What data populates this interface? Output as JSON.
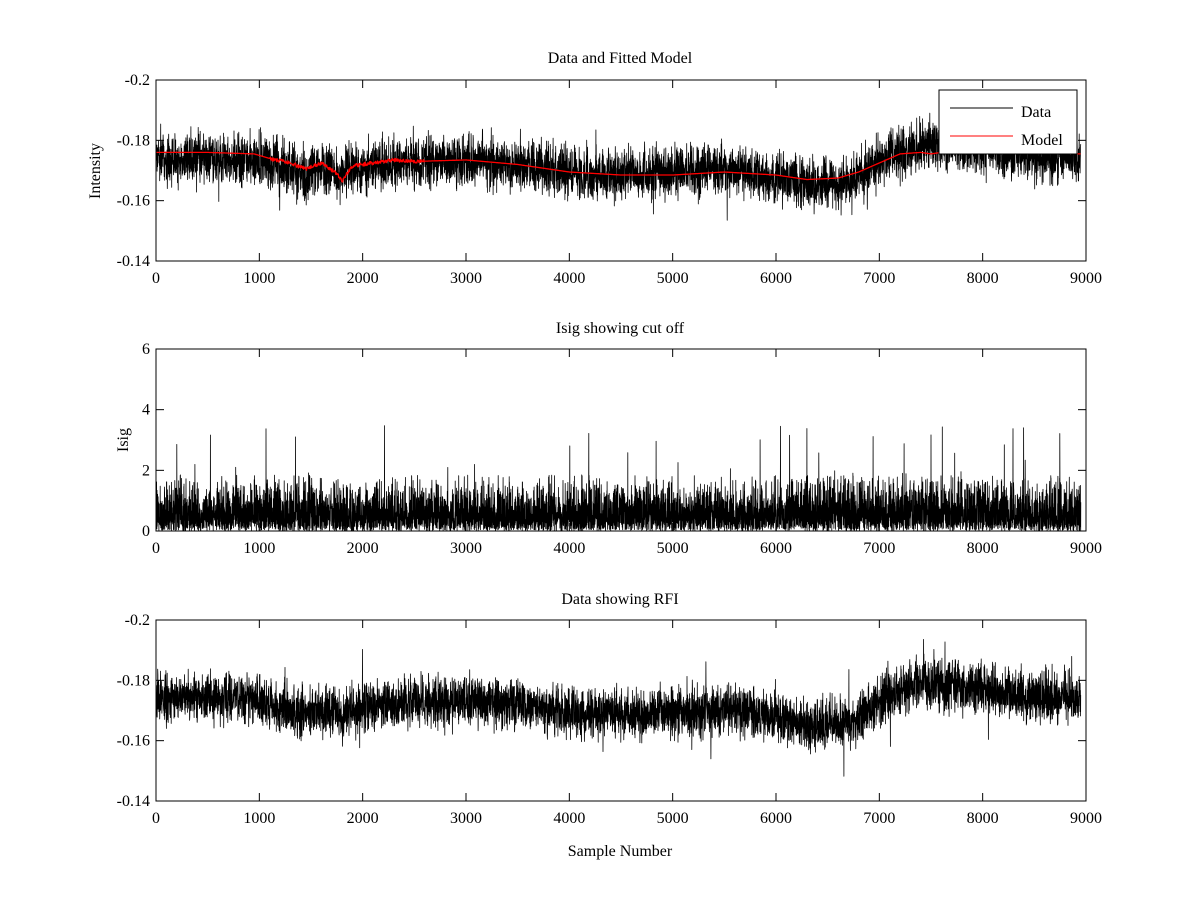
{
  "figure": {
    "background": "#ffffff"
  },
  "chart_data": [
    {
      "id": "p1",
      "type": "line",
      "title": "Data and Fitted Model",
      "xlabel": "",
      "ylabel": "Intensity",
      "xlim": [
        0,
        9000
      ],
      "ylim": [
        -0.2,
        -0.14
      ],
      "y_reversed": true,
      "xticks": [
        0,
        1000,
        2000,
        3000,
        4000,
        5000,
        6000,
        7000,
        8000,
        9000
      ],
      "xtick_labels": [
        "0",
        "1000",
        "2000",
        "3000",
        "4000",
        "5000",
        "6000",
        "7000",
        "8000",
        "9000"
      ],
      "yticks": [
        -0.14,
        -0.16,
        -0.18,
        -0.2
      ],
      "ytick_labels": [
        "-0.14",
        "-0.16",
        "-0.18",
        "-0.2"
      ],
      "grid": false,
      "legend": {
        "position": "top-right",
        "entries": [
          "Data",
          "Model"
        ]
      },
      "noise_amplitude": 0.004,
      "series": [
        {
          "name": "Data",
          "color": "#000000",
          "style": "noisy",
          "x": [
            0,
            500,
            1000,
            1200,
            1450,
            1600,
            1800,
            2000,
            2500,
            3000,
            3500,
            4000,
            4500,
            5000,
            5500,
            6000,
            6300,
            6600,
            6800,
            7000,
            7200,
            7400,
            7700,
            8000,
            8500,
            8950
          ],
          "y": [
            -0.1745,
            -0.174,
            -0.1735,
            -0.171,
            -0.169,
            -0.1705,
            -0.1685,
            -0.1715,
            -0.1725,
            -0.1735,
            -0.172,
            -0.1695,
            -0.1685,
            -0.1695,
            -0.1705,
            -0.168,
            -0.1655,
            -0.166,
            -0.1675,
            -0.1735,
            -0.177,
            -0.179,
            -0.1785,
            -0.177,
            -0.1745,
            -0.1745
          ]
        },
        {
          "name": "Model",
          "color": "#ff0000",
          "style": "smooth",
          "x": [
            0,
            500,
            950,
            1100,
            1300,
            1450,
            1600,
            1750,
            1800,
            1900,
            2100,
            2300,
            2500,
            3000,
            3500,
            4000,
            4500,
            5000,
            5500,
            6000,
            6300,
            6600,
            6800,
            7000,
            7200,
            7400,
            7500,
            7700,
            8000,
            8500,
            8950
          ],
          "y": [
            -0.176,
            -0.176,
            -0.1755,
            -0.174,
            -0.1725,
            -0.1705,
            -0.1725,
            -0.169,
            -0.1665,
            -0.1715,
            -0.1725,
            -0.1735,
            -0.173,
            -0.1735,
            -0.172,
            -0.1695,
            -0.1685,
            -0.1685,
            -0.1695,
            -0.1685,
            -0.167,
            -0.1675,
            -0.1695,
            -0.1725,
            -0.1755,
            -0.176,
            -0.1755,
            -0.1765,
            -0.1765,
            -0.1755,
            -0.1755
          ]
        }
      ]
    },
    {
      "id": "p2",
      "type": "line",
      "title": "Isig showing cut off",
      "xlabel": "",
      "ylabel": "Isig",
      "xlim": [
        0,
        9000
      ],
      "ylim": [
        0,
        6
      ],
      "y_reversed": false,
      "xticks": [
        0,
        1000,
        2000,
        3000,
        4000,
        5000,
        6000,
        7000,
        8000,
        9000
      ],
      "xtick_labels": [
        "0",
        "1000",
        "2000",
        "3000",
        "4000",
        "5000",
        "6000",
        "7000",
        "8000",
        "9000"
      ],
      "yticks": [
        0,
        2,
        4,
        6
      ],
      "ytick_labels": [
        "0",
        "2",
        "4",
        "6"
      ],
      "grid": false,
      "series": [
        {
          "color": "#000000",
          "style": "spiky",
          "typical_max": 1.8,
          "peak_max": 3.5,
          "x": [
            0,
            700,
            1000,
            2000,
            3000,
            4000,
            5000,
            6000,
            7000,
            7300,
            8000,
            8950
          ],
          "y": [
            0.8,
            0.8,
            0.85,
            0.8,
            0.8,
            0.8,
            0.8,
            0.85,
            0.9,
            0.95,
            0.85,
            0.8
          ]
        }
      ]
    },
    {
      "id": "p3",
      "type": "line",
      "title": "Data showing RFI",
      "xlabel": "Sample Number",
      "ylabel": "",
      "xlim": [
        0,
        9000
      ],
      "ylim": [
        -0.2,
        -0.14
      ],
      "y_reversed": true,
      "xticks": [
        0,
        1000,
        2000,
        3000,
        4000,
        5000,
        6000,
        7000,
        8000,
        9000
      ],
      "xtick_labels": [
        "0",
        "1000",
        "2000",
        "3000",
        "4000",
        "5000",
        "6000",
        "7000",
        "8000",
        "9000"
      ],
      "yticks": [
        -0.14,
        -0.16,
        -0.18,
        -0.2
      ],
      "ytick_labels": [
        "-0.14",
        "-0.16",
        "-0.18",
        "-0.2"
      ],
      "grid": false,
      "noise_amplitude": 0.004,
      "series": [
        {
          "color": "#000000",
          "style": "noisy",
          "x": [
            0,
            500,
            1000,
            1200,
            1450,
            1600,
            1800,
            2000,
            2500,
            3000,
            3500,
            4000,
            4500,
            5000,
            5500,
            6000,
            6300,
            6600,
            6800,
            7000,
            7200,
            7400,
            7700,
            8000,
            8500,
            8950
          ],
          "y": [
            -0.1745,
            -0.174,
            -0.1735,
            -0.171,
            -0.169,
            -0.1705,
            -0.1685,
            -0.1715,
            -0.1725,
            -0.1735,
            -0.172,
            -0.1695,
            -0.1685,
            -0.1695,
            -0.1705,
            -0.168,
            -0.1655,
            -0.166,
            -0.1675,
            -0.1735,
            -0.177,
            -0.179,
            -0.1785,
            -0.177,
            -0.1745,
            -0.1745
          ]
        }
      ]
    }
  ]
}
